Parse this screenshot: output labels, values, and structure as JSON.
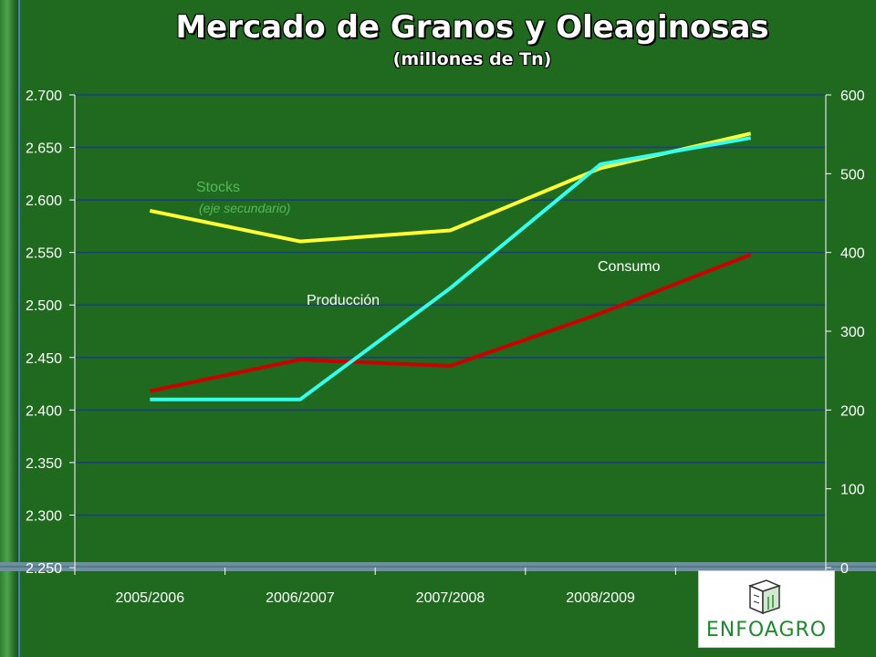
{
  "title": "Mercado de Granos y Oleaginosas",
  "subtitle": "(millones de Tn)",
  "logo": {
    "text": "ENFOAGRO",
    "icon": "field-cube-icon"
  },
  "colors": {
    "background": "#1f6a1f",
    "produccion": "#33ffee",
    "consumo": "#cc0000",
    "stocks": "#ffff33",
    "stocks_label": "#58b858",
    "grid": "#1a3a8a",
    "text": "#ffffff"
  },
  "chart_data": {
    "type": "line",
    "categories": [
      "2005/2006",
      "2006/2007",
      "2007/2008",
      "2008/2009",
      ""
    ],
    "y_left": {
      "ticks": [
        "2.250",
        "2.300",
        "2.350",
        "2.400",
        "2.450",
        "2.500",
        "2.550",
        "2.600",
        "2.650",
        "2.700"
      ],
      "ylim": [
        2250,
        2700
      ]
    },
    "y_right": {
      "ticks": [
        "0",
        "100",
        "200",
        "300",
        "400",
        "500",
        "600"
      ],
      "ylim": [
        0,
        600
      ]
    },
    "grid": true,
    "series": [
      {
        "name": "Producción",
        "axis": "left",
        "values": [
          2410,
          2410,
          2516,
          2634,
          2659
        ]
      },
      {
        "name": "Consumo",
        "axis": "left",
        "values": [
          2418,
          2448,
          2442,
          2492,
          2548
        ]
      },
      {
        "name": "Stocks",
        "note": "(eje secundario)",
        "axis": "right",
        "values": [
          453,
          414,
          428,
          507,
          551
        ]
      }
    ]
  }
}
